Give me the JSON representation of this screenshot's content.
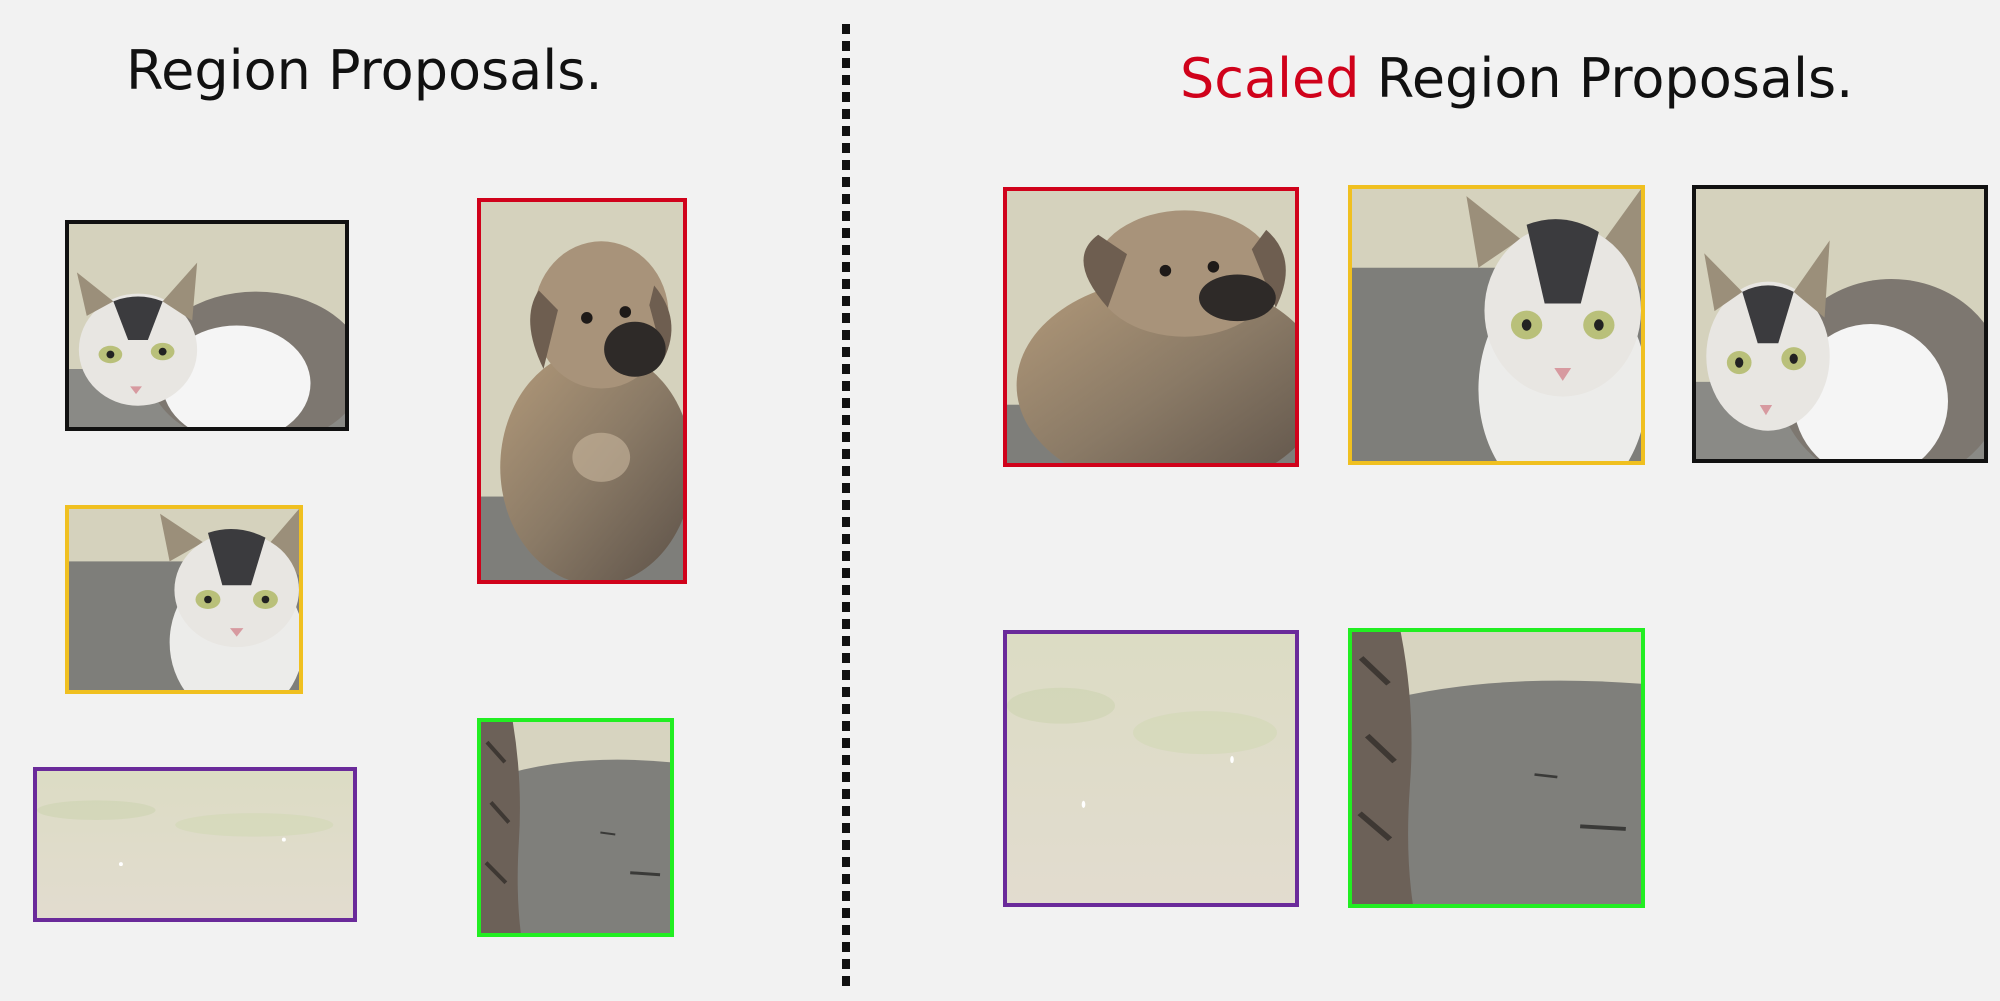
{
  "left_panel": {
    "title": "Region Proposals."
  },
  "right_panel": {
    "title_accent": "Scaled",
    "title_rest": " Region Proposals."
  },
  "colors": {
    "cat_box": "#111111",
    "dog_box": "#d0021b",
    "cat_closeup_box": "#f0c020",
    "grass_box": "#6a2a9a",
    "ground_box": "#22ee22",
    "title_accent": "#d0021b"
  },
  "regions": [
    {
      "name": "cat-region",
      "content": "cat-photo",
      "border_color": "#111111"
    },
    {
      "name": "dog-region",
      "content": "dog-photo",
      "border_color": "#d0021b"
    },
    {
      "name": "cat-closeup-region",
      "content": "cat-closeup-photo",
      "border_color": "#f0c020"
    },
    {
      "name": "grass-region",
      "content": "grass-photo",
      "border_color": "#6a2a9a"
    },
    {
      "name": "ground-region",
      "content": "ground-photo",
      "border_color": "#22ee22"
    }
  ]
}
